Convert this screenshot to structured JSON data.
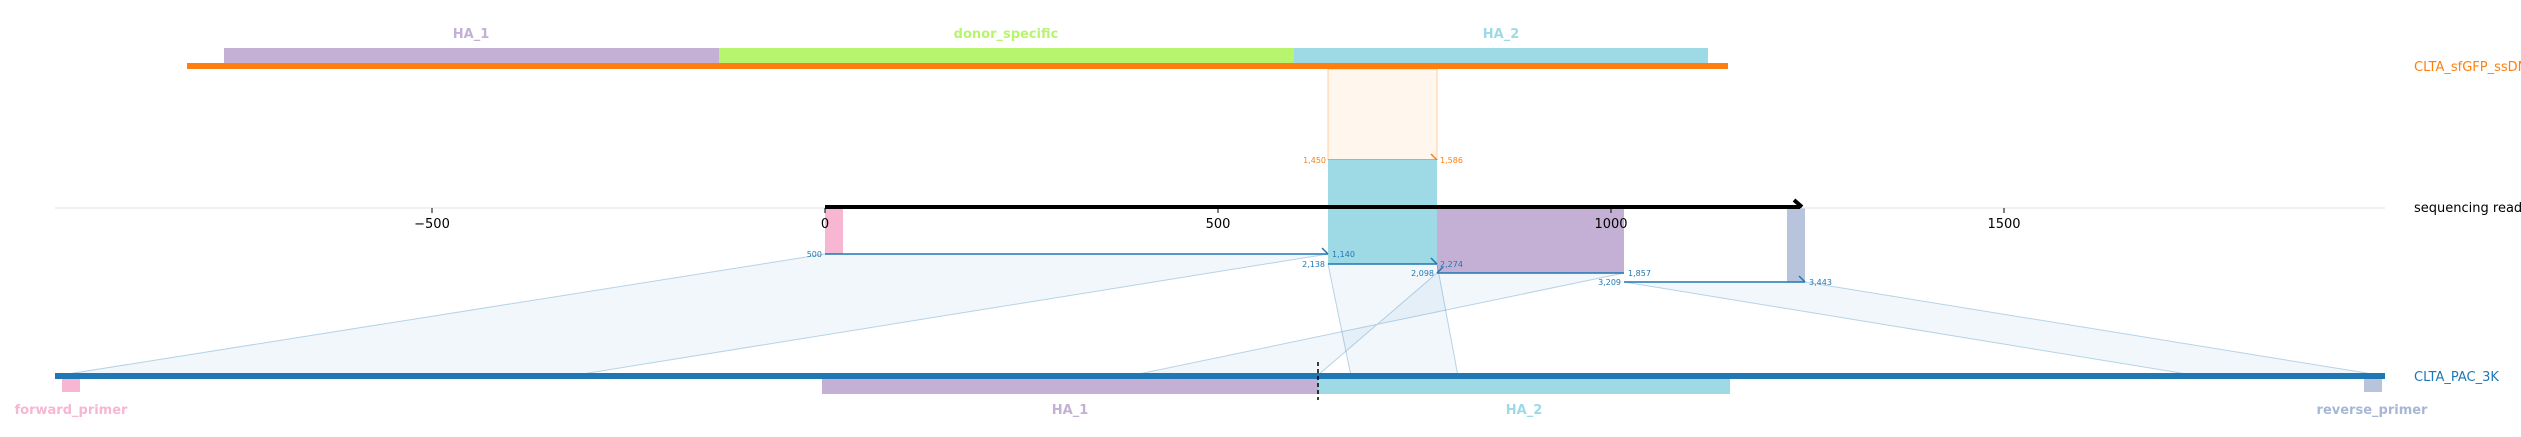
{
  "chart_data": {
    "type": "alignment",
    "reference": {
      "name": "CLTA_sfGFP_ssDNA",
      "color": "#ff7f0e",
      "features": [
        {
          "name": "HA_1",
          "color": "#c5b0d5"
        },
        {
          "name": "donor_specific",
          "color": "#b8f56f"
        },
        {
          "name": "HA_2",
          "color": "#9edae5"
        }
      ]
    },
    "read": {
      "name": "sequencing read",
      "color": "#000000",
      "xaxis": {
        "ticks": [
          -500,
          0,
          500,
          1000,
          1500
        ],
        "tick_labels": [
          "−500",
          "0",
          "500",
          "1000",
          "1500"
        ]
      }
    },
    "target": {
      "name": "CLTA_PAC_3K",
      "color": "#1f77b4",
      "features": [
        {
          "name": "forward_primer",
          "color": "#f7b6d2"
        },
        {
          "name": "HA_1",
          "color": "#c5b0d5"
        },
        {
          "name": "HA_2",
          "color": "#9edae5"
        },
        {
          "name": "reverse_primer",
          "color": "#aec7e8"
        }
      ]
    },
    "alignments": [
      {
        "track": "reference",
        "read_start": 638,
        "read_end": 775,
        "ref_start": 1450,
        "ref_end": 1586,
        "start_label": "1,450",
        "end_label": "1,586",
        "color": "#ff7f0e"
      },
      {
        "track": "target",
        "read_start": 0,
        "read_end": 638,
        "ref_start": 500,
        "ref_end": 1140,
        "start_label": "500",
        "end_label": "1,140",
        "color": "#1f77b4"
      },
      {
        "track": "target",
        "read_start": 638,
        "read_end": 775,
        "ref_start": 2138,
        "ref_end": 2274,
        "start_label": "2,138",
        "end_label": "2,274",
        "color": "#1f77b4"
      },
      {
        "track": "target",
        "read_start": 775,
        "read_end": 1012,
        "ref_start": 1857,
        "ref_end": 2098,
        "start_label": "2,098",
        "end_label": "1,857",
        "color": "#1f77b4"
      },
      {
        "track": "target",
        "read_start": 1012,
        "read_end": 1245,
        "ref_start": 3209,
        "ref_end": 3443,
        "start_label": "3,209",
        "end_label": "3,443",
        "color": "#1f77b4"
      }
    ],
    "read_features": [
      {
        "name": "forward_primer",
        "read_start": 0,
        "read_end": 25,
        "color": "#f7b6d2"
      },
      {
        "name": "HA_2",
        "read_start": 638,
        "read_end": 775,
        "color": "#9edae5"
      },
      {
        "name": "HA_1",
        "read_start": 775,
        "read_end": 1012,
        "color": "#c5b0d5"
      },
      {
        "name": "reverse_primer",
        "read_start": 1220,
        "read_end": 1245,
        "color": "#aec7e8"
      }
    ]
  }
}
